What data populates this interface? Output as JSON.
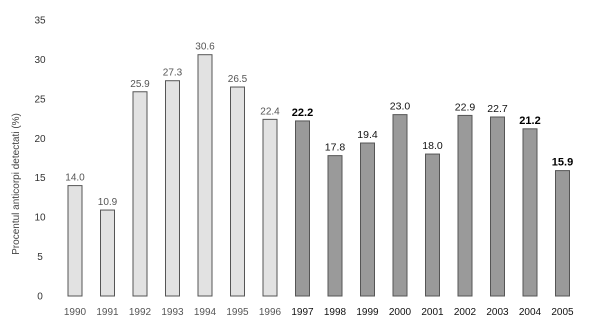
{
  "chart_data": {
    "type": "bar",
    "title": "",
    "xlabel": "",
    "ylabel": "Procentul anticorpi detectati (%)",
    "ylim": [
      0,
      35
    ],
    "yticks": [
      0,
      5,
      10,
      15,
      20,
      25,
      30,
      35
    ],
    "grid": false,
    "legend": "none",
    "categories": [
      "1990",
      "1991",
      "1992",
      "1993",
      "1994",
      "1995",
      "1996",
      "1997",
      "1998",
      "1999",
      "2000",
      "2001",
      "2002",
      "2003",
      "2004",
      "2005"
    ],
    "values": [
      14.0,
      10.9,
      25.9,
      27.3,
      30.6,
      26.5,
      22.4,
      22.2,
      17.8,
      19.4,
      23.0,
      18.0,
      22.9,
      22.7,
      21.2,
      15.9
    ],
    "value_labels": [
      "14.0",
      "10.9",
      "25.9",
      "27.3",
      "30.6",
      "26.5",
      "22.4",
      "22.2",
      "17.8",
      "19.4",
      "23.0",
      "18.0",
      "22.9",
      "22.7",
      "21.2",
      "15.9"
    ],
    "bold_labels": [
      "1997",
      "2004",
      "2005"
    ],
    "colors": {
      "bar_light": "#e2e2e2",
      "bar_dark": "#9a9a9a",
      "bar_border": "#555555",
      "axis": "#333333"
    },
    "dark_from_index": 7
  }
}
